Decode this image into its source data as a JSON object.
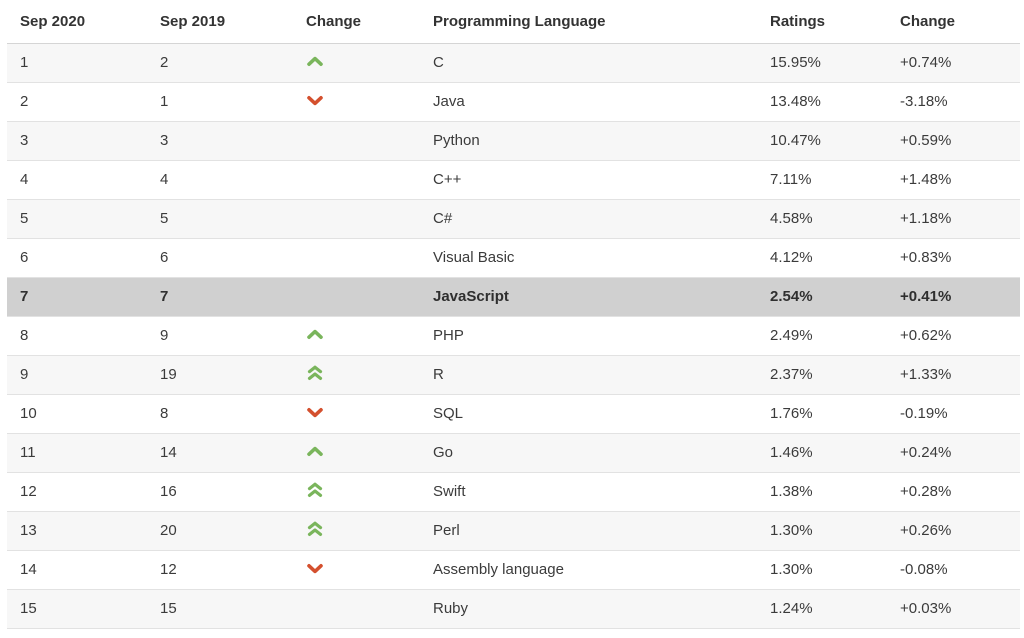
{
  "table": {
    "headers": {
      "rank2020": "Sep 2020",
      "rank2019": "Sep 2019",
      "position_change": "Change",
      "language": "Programming Language",
      "ratings": "Ratings",
      "ratings_change": "Change"
    },
    "rows": [
      {
        "rank2020": "1",
        "rank2019": "2",
        "change_icon": "up",
        "language": "C",
        "ratings": "15.95%",
        "change": "+0.74%",
        "highlighted": false
      },
      {
        "rank2020": "2",
        "rank2019": "1",
        "change_icon": "down",
        "language": "Java",
        "ratings": "13.48%",
        "change": "-3.18%",
        "highlighted": false
      },
      {
        "rank2020": "3",
        "rank2019": "3",
        "change_icon": "",
        "language": "Python",
        "ratings": "10.47%",
        "change": "+0.59%",
        "highlighted": false
      },
      {
        "rank2020": "4",
        "rank2019": "4",
        "change_icon": "",
        "language": "C++",
        "ratings": "7.11%",
        "change": "+1.48%",
        "highlighted": false
      },
      {
        "rank2020": "5",
        "rank2019": "5",
        "change_icon": "",
        "language": "C#",
        "ratings": "4.58%",
        "change": "+1.18%",
        "highlighted": false
      },
      {
        "rank2020": "6",
        "rank2019": "6",
        "change_icon": "",
        "language": "Visual Basic",
        "ratings": "4.12%",
        "change": "+0.83%",
        "highlighted": false
      },
      {
        "rank2020": "7",
        "rank2019": "7",
        "change_icon": "",
        "language": "JavaScript",
        "ratings": "2.54%",
        "change": "+0.41%",
        "highlighted": true
      },
      {
        "rank2020": "8",
        "rank2019": "9",
        "change_icon": "up",
        "language": "PHP",
        "ratings": "2.49%",
        "change": "+0.62%",
        "highlighted": false
      },
      {
        "rank2020": "9",
        "rank2019": "19",
        "change_icon": "double_up",
        "language": "R",
        "ratings": "2.37%",
        "change": "+1.33%",
        "highlighted": false
      },
      {
        "rank2020": "10",
        "rank2019": "8",
        "change_icon": "down",
        "language": "SQL",
        "ratings": "1.76%",
        "change": "-0.19%",
        "highlighted": false
      },
      {
        "rank2020": "11",
        "rank2019": "14",
        "change_icon": "up",
        "language": "Go",
        "ratings": "1.46%",
        "change": "+0.24%",
        "highlighted": false
      },
      {
        "rank2020": "12",
        "rank2019": "16",
        "change_icon": "double_up",
        "language": "Swift",
        "ratings": "1.38%",
        "change": "+0.28%",
        "highlighted": false
      },
      {
        "rank2020": "13",
        "rank2019": "20",
        "change_icon": "double_up",
        "language": "Perl",
        "ratings": "1.30%",
        "change": "+0.26%",
        "highlighted": false
      },
      {
        "rank2020": "14",
        "rank2019": "12",
        "change_icon": "down",
        "language": "Assembly language",
        "ratings": "1.30%",
        "change": "-0.08%",
        "highlighted": false
      },
      {
        "rank2020": "15",
        "rank2019": "15",
        "change_icon": "",
        "language": "Ruby",
        "ratings": "1.24%",
        "change": "+0.03%",
        "highlighted": false
      }
    ]
  },
  "colors": {
    "up_arrow": "#7ab55c",
    "down_arrow": "#d4502e",
    "stripe_row": "#f7f7f7",
    "highlight_row": "#d0d0d0"
  }
}
